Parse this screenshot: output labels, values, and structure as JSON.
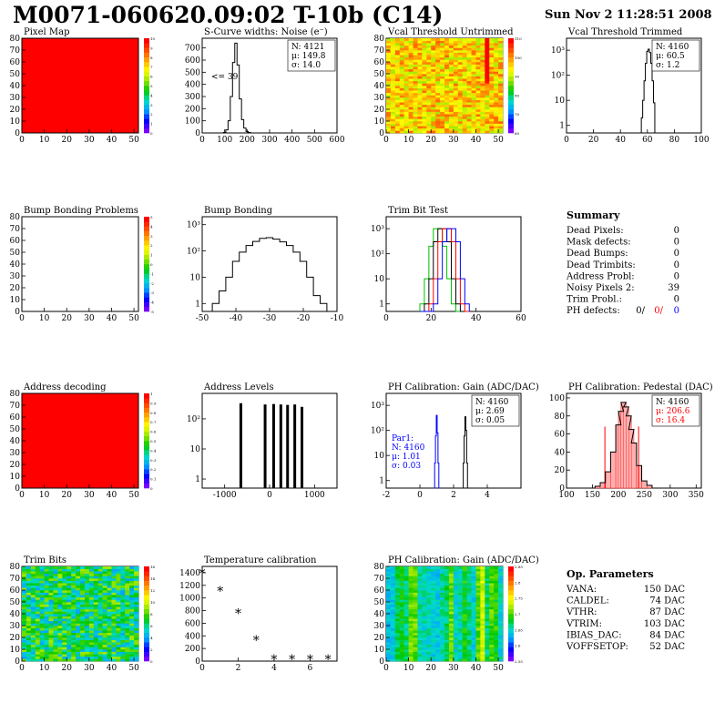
{
  "header": {
    "title": "M0071-060620.09:02 T-10b (C14)",
    "date": "Sun Nov  2 11:28:51 2008"
  },
  "chart_data": [
    {
      "id": "pixel-map",
      "type": "heatmap",
      "title": "Pixel Map",
      "x_ticks": [
        "0",
        "10",
        "20",
        "30",
        "40",
        "50"
      ],
      "y_ticks": [
        "0",
        "10",
        "20",
        "30",
        "40",
        "50",
        "60",
        "70",
        "80"
      ],
      "xlim": [
        0,
        52
      ],
      "ylim": [
        0,
        80
      ],
      "fill": "uniform_max",
      "palette_ticks": [
        "0",
        "1",
        "2",
        "3",
        "4",
        "5",
        "6",
        "7",
        "8",
        "9",
        "10"
      ]
    },
    {
      "id": "noise",
      "type": "line",
      "title": "S-Curve widths: Noise (e⁻)",
      "x_ticks": [
        "0",
        "100",
        "200",
        "300",
        "400",
        "500",
        "600"
      ],
      "y_ticks": [
        "0",
        "100",
        "200",
        "300",
        "400",
        "500",
        "600",
        "700"
      ],
      "xlim": [
        0,
        600
      ],
      "ylim": [
        0,
        780
      ],
      "x": [
        90,
        100,
        110,
        120,
        130,
        140,
        150,
        160,
        170,
        180,
        190,
        200,
        210,
        220
      ],
      "values": [
        0,
        5,
        25,
        100,
        300,
        580,
        740,
        560,
        280,
        110,
        40,
        12,
        4,
        0
      ],
      "stats": [
        "N: 4121",
        "μ: 149.8",
        "σ: 14.0"
      ],
      "annotation": "<= 39"
    },
    {
      "id": "vcal-untrimmed",
      "type": "heatmap",
      "title": "Vcal Threshold Untrimmed",
      "x_ticks": [
        "0",
        "10",
        "20",
        "30",
        "40",
        "50"
      ],
      "y_ticks": [
        "0",
        "10",
        "20",
        "30",
        "40",
        "50",
        "60",
        "70",
        "80"
      ],
      "xlim": [
        0,
        52
      ],
      "ylim": [
        0,
        80
      ],
      "fill": "noisy_orange",
      "palette_ticks": [
        "60",
        "70",
        "80",
        "90",
        "100",
        "110"
      ]
    },
    {
      "id": "vcal-trimmed",
      "type": "line",
      "title": "Vcal Threshold Trimmed",
      "log_y": true,
      "x_ticks": [
        "0",
        "20",
        "40",
        "60",
        "80",
        "100"
      ],
      "y_ticks": [
        "1",
        "10",
        "10²",
        "10³"
      ],
      "xlim": [
        0,
        100
      ],
      "ylim": [
        0.5,
        3000
      ],
      "x": [
        55,
        56,
        57,
        58,
        59,
        60,
        61,
        62,
        63,
        64,
        65,
        66
      ],
      "values": [
        0,
        2,
        10,
        60,
        300,
        900,
        1100,
        800,
        300,
        60,
        8,
        0
      ],
      "stats": [
        "N: 4160",
        "μ: 60.5",
        "σ:  1.2"
      ]
    },
    {
      "id": "bump-problems",
      "type": "heatmap",
      "title": "Bump Bonding Problems",
      "x_ticks": [
        "0",
        "10",
        "20",
        "30",
        "40",
        "50"
      ],
      "y_ticks": [
        "0",
        "10",
        "20",
        "30",
        "40",
        "50",
        "60",
        "70",
        "80"
      ],
      "xlim": [
        0,
        52
      ],
      "ylim": [
        0,
        80
      ],
      "fill": "empty",
      "palette_ticks": [
        "-5",
        "-4",
        "-3",
        "-2",
        "-1",
        "0",
        "1",
        "2",
        "3",
        "4",
        "5"
      ]
    },
    {
      "id": "bump-bonding",
      "type": "line",
      "title": "Bump Bonding",
      "log_y": true,
      "x_ticks": [
        "-50",
        "-40",
        "-30",
        "-20",
        "-10"
      ],
      "y_ticks": [
        "1",
        "10",
        "10²",
        "10³"
      ],
      "xlim": [
        -50,
        -10
      ],
      "ylim": [
        0.5,
        2000
      ],
      "x": [
        -46,
        -44,
        -42,
        -40,
        -38,
        -36,
        -34,
        -32,
        -30,
        -28,
        -26,
        -24,
        -22,
        -20,
        -18,
        -16,
        -14
      ],
      "values": [
        1,
        3,
        10,
        40,
        90,
        160,
        230,
        300,
        320,
        280,
        220,
        160,
        90,
        40,
        10,
        2,
        1
      ]
    },
    {
      "id": "trim-bits-test",
      "type": "line",
      "title": "Trim Bit Test",
      "log_y": true,
      "x_ticks": [
        "0",
        "20",
        "40",
        "60"
      ],
      "y_ticks": [
        "1",
        "10",
        "10²",
        "10³"
      ],
      "xlim": [
        0,
        60
      ],
      "ylim": [
        0.5,
        3000
      ],
      "x": [
        16,
        18,
        20,
        22,
        24,
        26,
        28,
        30,
        32,
        34,
        36
      ],
      "series": [
        {
          "color": "#00c000",
          "values": [
            1,
            10,
            200,
            1000,
            1000,
            200,
            10,
            1,
            0,
            0,
            0
          ]
        },
        {
          "color": "#000000",
          "values": [
            0,
            1,
            10,
            300,
            1000,
            1000,
            300,
            10,
            1,
            0,
            0
          ]
        },
        {
          "color": "#ff0000",
          "values": [
            0,
            0,
            1,
            10,
            300,
            1000,
            1000,
            300,
            10,
            1,
            0
          ]
        },
        {
          "color": "#0000ff",
          "values": [
            0,
            0,
            0,
            1,
            10,
            300,
            1000,
            1000,
            300,
            10,
            1
          ]
        }
      ]
    },
    {
      "id": "address-decoding",
      "type": "heatmap",
      "title": "Address decoding",
      "x_ticks": [
        "0",
        "10",
        "20",
        "30",
        "40",
        "50"
      ],
      "y_ticks": [
        "0",
        "10",
        "20",
        "30",
        "40",
        "50",
        "60",
        "70",
        "80"
      ],
      "xlim": [
        0,
        52
      ],
      "ylim": [
        0,
        80
      ],
      "fill": "uniform_max",
      "palette_ticks": [
        "0",
        "0.1",
        "0.2",
        "0.3",
        "0.4",
        "0.5",
        "0.6",
        "0.7",
        "0.8",
        "0.9",
        "1"
      ]
    },
    {
      "id": "address-levels",
      "type": "bar",
      "title": "Address Levels",
      "log_y": true,
      "x_ticks": [
        "-1000",
        "0",
        "1000"
      ],
      "y_ticks": [
        "1",
        "10",
        "10²"
      ],
      "xlim": [
        -1500,
        1500
      ],
      "ylim": [
        0.5,
        700
      ],
      "x": [
        -640,
        -100,
        90,
        250,
        400,
        560,
        720
      ],
      "values": [
        330,
        300,
        310,
        300,
        290,
        300,
        250
      ]
    },
    {
      "id": "ph-gain",
      "type": "line",
      "title": "PH Calibration: Gain (ADC/DAC)",
      "log_y": true,
      "x_ticks": [
        "-2",
        "0",
        "2",
        "4"
      ],
      "y_ticks": [
        "1",
        "10",
        "10²",
        "10³"
      ],
      "xlim": [
        -2,
        6
      ],
      "ylim": [
        0.5,
        3000
      ],
      "series": [
        {
          "color": "#0000ff",
          "x": [
            0.85,
            0.9,
            0.95,
            1.0,
            1.05,
            1.1,
            1.15
          ],
          "values": [
            0,
            5,
            60,
            400,
            80,
            5,
            0
          ]
        },
        {
          "color": "#000000",
          "x": [
            2.55,
            2.6,
            2.65,
            2.7,
            2.75,
            2.8,
            2.85
          ],
          "values": [
            0,
            5,
            60,
            350,
            100,
            5,
            0
          ]
        }
      ],
      "stats": [
        "N: 4160",
        "μ: 2.69",
        "σ: 0.05"
      ],
      "stats2": [
        "Par1:",
        "N: 4160",
        "μ: 1.01",
        "σ: 0.03"
      ]
    },
    {
      "id": "ph-pedestal",
      "type": "area",
      "title": "PH Calibration: Pedestal (DAC)",
      "x_ticks": [
        "100",
        "150",
        "200",
        "250",
        "300",
        "350"
      ],
      "y_ticks": [
        "0",
        "20",
        "40",
        "60",
        "80",
        "100"
      ],
      "xlim": [
        100,
        360
      ],
      "ylim": [
        0,
        105
      ],
      "x": [
        150,
        160,
        170,
        180,
        190,
        200,
        205,
        210,
        215,
        220,
        225,
        230,
        240,
        250,
        260,
        270
      ],
      "values": [
        0,
        2,
        6,
        18,
        40,
        70,
        85,
        95,
        90,
        80,
        65,
        50,
        25,
        8,
        3,
        0
      ],
      "stats": [
        "N: 4160",
        "μ: 206.6",
        "σ: 16.4"
      ],
      "cut_lines": [
        174,
        239
      ]
    },
    {
      "id": "trim-bits",
      "type": "heatmap",
      "title": "Trim Bits",
      "x_ticks": [
        "0",
        "10",
        "20",
        "30",
        "40",
        "50"
      ],
      "y_ticks": [
        "0",
        "10",
        "20",
        "30",
        "40",
        "50",
        "60",
        "70",
        "80"
      ],
      "xlim": [
        0,
        52
      ],
      "ylim": [
        0,
        80
      ],
      "fill": "noisy_green",
      "palette_ticks": [
        "0",
        "2",
        "4",
        "6",
        "8",
        "10",
        "12",
        "14",
        "16"
      ]
    },
    {
      "id": "temperature",
      "type": "scatter",
      "title": "Temperature calibration",
      "x_ticks": [
        "0",
        "2",
        "4",
        "6"
      ],
      "y_ticks": [
        "0",
        "200",
        "400",
        "600",
        "800",
        "1000",
        "1200",
        "1400"
      ],
      "xlim": [
        0,
        7.5
      ],
      "ylim": [
        0,
        1500
      ],
      "x": [
        0,
        1,
        2,
        3,
        4,
        5,
        6,
        7
      ],
      "values": [
        1390,
        1110,
        760,
        330,
        30,
        30,
        30,
        30
      ]
    },
    {
      "id": "ph-gain-map",
      "type": "heatmap",
      "title": "PH Calibration: Gain (ADC/DAC)",
      "x_ticks": [
        "0",
        "10",
        "20",
        "30",
        "40",
        "50"
      ],
      "y_ticks": [
        "0",
        "10",
        "20",
        "30",
        "40",
        "50",
        "60",
        "70",
        "80"
      ],
      "xlim": [
        0,
        52
      ],
      "ylim": [
        0,
        80
      ],
      "fill": "column_stripes",
      "palette_ticks": [
        "2.55",
        "2.6",
        "2.65",
        "2.7",
        "2.75",
        "2.8",
        "2.85"
      ]
    }
  ],
  "summary": {
    "title": "Summary",
    "rows": [
      {
        "label": "Dead Pixels:",
        "value": "0"
      },
      {
        "label": "Mask defects:",
        "value": "0"
      },
      {
        "label": "Dead Bumps:",
        "value": "0"
      },
      {
        "label": "Dead Trimbits:",
        "value": "0"
      },
      {
        "label": "Address Probl:",
        "value": "0"
      },
      {
        "label": "Noisy Pixels 2:",
        "value": "39"
      },
      {
        "label": "Trim Probl.:",
        "value": "0"
      }
    ],
    "ph_label": "PH defects:",
    "ph_values": [
      "0/",
      "0/",
      "0"
    ],
    "ph_colors": [
      "#000000",
      "#ff0000",
      "#0000ff"
    ]
  },
  "op_params": {
    "title": "Op. Parameters",
    "rows": [
      {
        "label": "VANA:",
        "value": "150 DAC"
      },
      {
        "label": "CALDEL:",
        "value": "74 DAC"
      },
      {
        "label": "VTHR:",
        "value": "87 DAC"
      },
      {
        "label": "VTRIM:",
        "value": "103 DAC"
      },
      {
        "label": "IBIAS_DAC:",
        "value": "84 DAC"
      },
      {
        "label": "VOFFSETOP:",
        "value": "52 DAC"
      }
    ]
  }
}
